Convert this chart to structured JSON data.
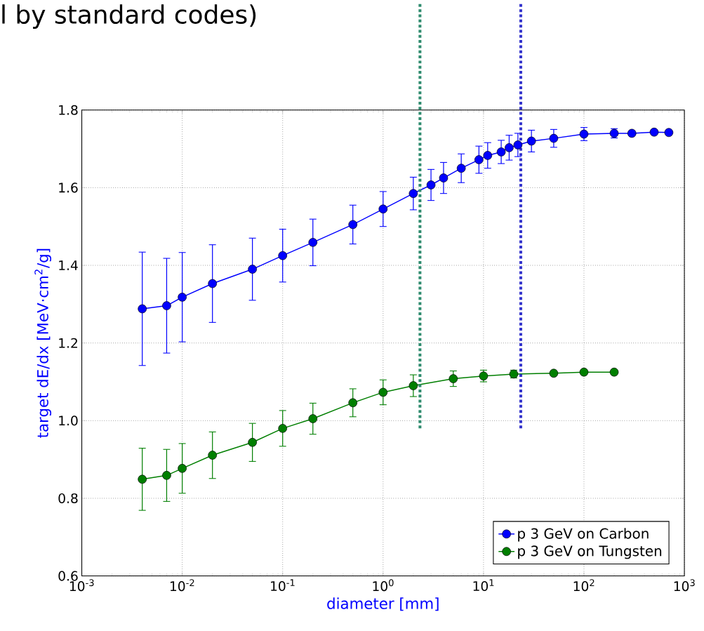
{
  "chart_data": {
    "type": "line",
    "title": "l by standard codes)",
    "xlabel": "diameter [mm]",
    "ylabel": "target dE/dx [MeV·cm$^{2}$/g]",
    "log": "x",
    "grid": true,
    "legend": "bottom right",
    "marker": "circle",
    "line_style": "solid",
    "xlim": [
      0.001,
      1000
    ],
    "ylim": [
      0.6,
      1.8
    ],
    "xticks": [
      {
        "value": 0.001,
        "label": "10$^{-3}$"
      },
      {
        "value": 0.01,
        "label": "10$^{-2}$"
      },
      {
        "value": 0.1,
        "label": "10$^{-1}$"
      },
      {
        "value": 1,
        "label": "10$^{0}$"
      },
      {
        "value": 10,
        "label": "10$^{1}$"
      },
      {
        "value": 100,
        "label": "10$^{2}$"
      },
      {
        "value": 1000,
        "label": "10$^{3}$"
      }
    ],
    "yticks": [
      0.6,
      0.8,
      {
        "value": 1,
        "label": "1.0"
      },
      1.2,
      1.4,
      1.6,
      1.8
    ],
    "ref_lines": [
      {
        "axis": "x",
        "value": 2.33,
        "color": "#2e8b6e",
        "line_style": "dotted"
      },
      {
        "axis": "x",
        "value": 23.5,
        "color": "#3333cc",
        "line_style": "dotted"
      }
    ],
    "series": [
      {
        "name": "p 3 GeV on Carbon",
        "color": "#0000ff",
        "x": [
          0.004,
          0.007,
          0.01,
          0.02,
          0.05,
          0.1,
          0.2,
          0.5,
          1,
          2,
          3,
          4,
          6,
          9,
          11,
          15,
          18,
          22,
          30,
          50,
          100,
          200,
          300,
          500,
          700
        ],
        "values": [
          1.288,
          1.296,
          1.318,
          1.353,
          1.39,
          1.425,
          1.459,
          1.505,
          1.545,
          1.585,
          1.607,
          1.625,
          1.65,
          1.672,
          1.683,
          1.692,
          1.703,
          1.71,
          1.72,
          1.727,
          1.738,
          1.74,
          1.74,
          1.743,
          1.742
        ],
        "errors": [
          0.146,
          0.122,
          0.115,
          0.1,
          0.08,
          0.068,
          0.06,
          0.05,
          0.045,
          0.042,
          0.04,
          0.04,
          0.037,
          0.035,
          0.033,
          0.03,
          0.032,
          0.03,
          0.028,
          0.023,
          0.017,
          0.012,
          0.005,
          null,
          null
        ]
      },
      {
        "name": "p 3 GeV on Tungsten",
        "color": "#007f00",
        "x": [
          0.004,
          0.007,
          0.01,
          0.02,
          0.05,
          0.1,
          0.2,
          0.5,
          1,
          2,
          5,
          10,
          20,
          50,
          100,
          200
        ],
        "values": [
          0.849,
          0.859,
          0.877,
          0.911,
          0.944,
          0.98,
          1.005,
          1.046,
          1.073,
          1.09,
          1.108,
          1.115,
          1.12,
          1.122,
          1.125,
          1.125
        ],
        "errors": [
          0.08,
          0.067,
          0.064,
          0.06,
          0.049,
          0.046,
          0.04,
          0.036,
          0.032,
          0.028,
          0.02,
          0.015,
          0.01,
          null,
          null,
          null
        ]
      }
    ]
  }
}
